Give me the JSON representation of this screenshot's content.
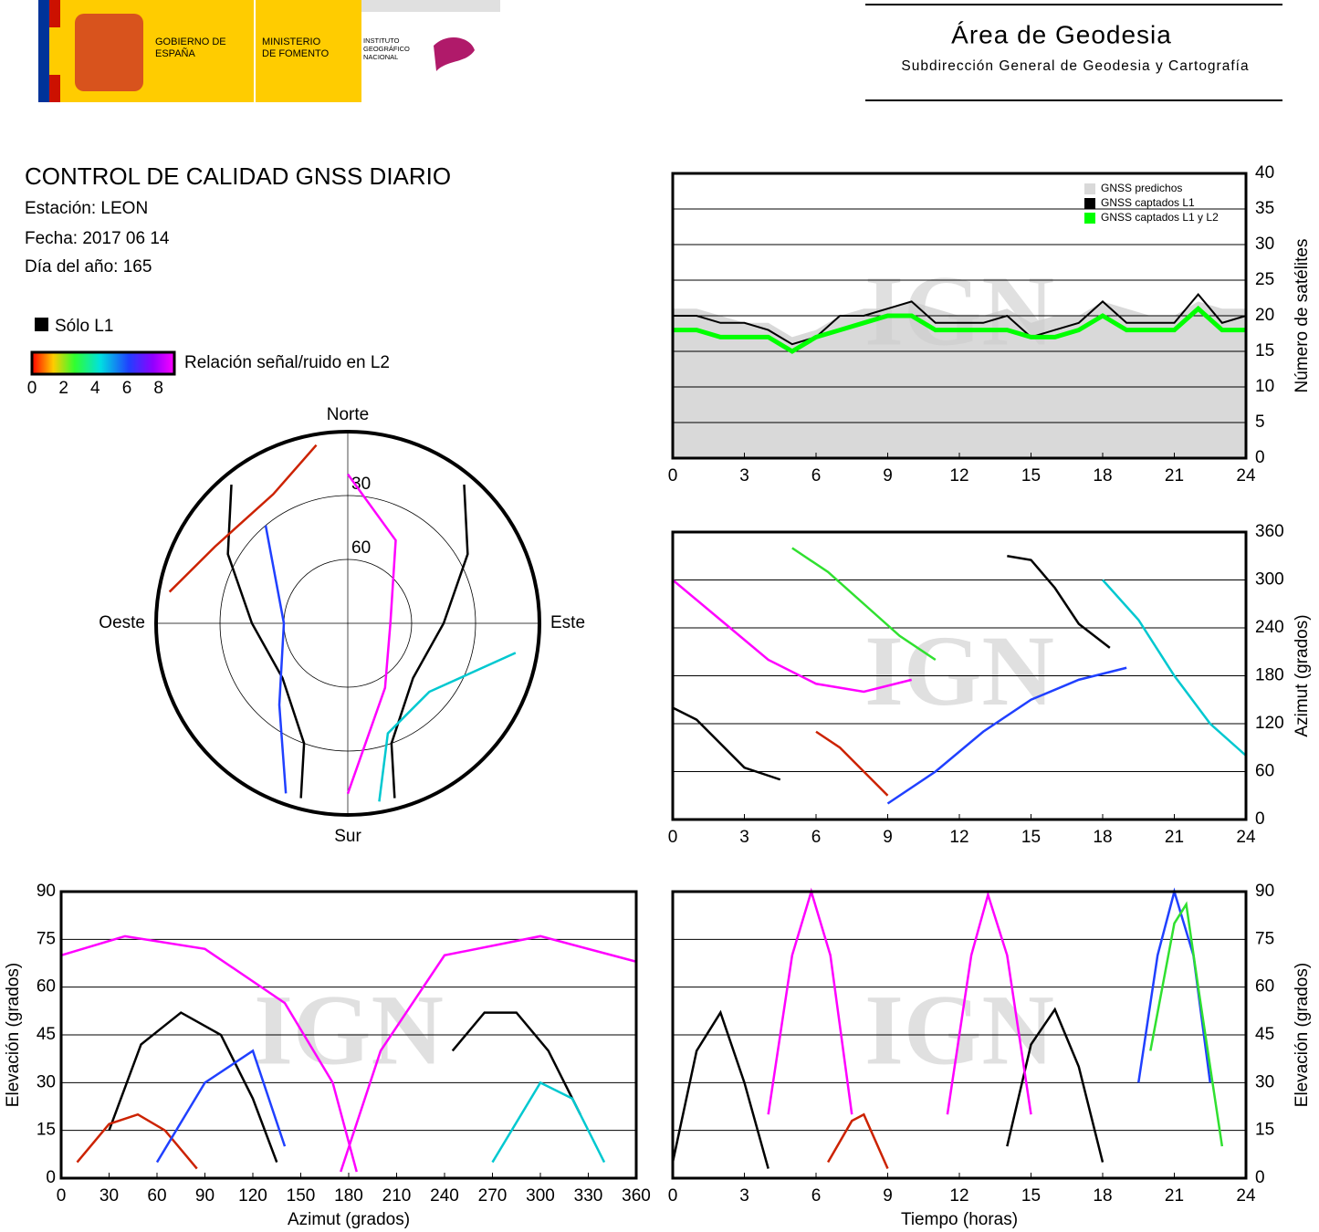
{
  "header": {
    "logos": [
      "GOBIERNO DE ESPAÑA",
      "MINISTERIO DE FOMENTO",
      "INSTITUTO GEOGRÁFICO NACIONAL"
    ],
    "area": "Área de Geodesia",
    "subarea": "Subdirección General de Geodesia y Cartografía"
  },
  "info": {
    "title": "CONTROL DE CALIDAD GNSS DIARIO",
    "station": "Estación: LEON",
    "date": "Fecha: 2017 06 14",
    "doy": "Día del año: 165"
  },
  "legend": {
    "l1_only": "Sólo L1",
    "snr_label": "Relación señal/ruido en L2",
    "snr_lim": [
      0,
      9
    ],
    "snr_ticks": [
      0,
      2,
      4,
      6,
      8
    ]
  },
  "watermark": "IGN",
  "chart_data": [
    {
      "type": "polar",
      "north": "Norte",
      "south": "Sur",
      "east": "Este",
      "west": "Oeste",
      "rlim": [
        90,
        0
      ],
      "rticks": [
        30,
        60
      ],
      "series": [
        {
          "color": "#000000",
          "azimuth": [
            320,
            300,
            270,
            230,
            200,
            195
          ],
          "elevation": [
            5,
            25,
            45,
            50,
            30,
            5
          ]
        },
        {
          "color": "#000000",
          "azimuth": [
            40,
            60,
            90,
            130,
            160,
            165
          ],
          "elevation": [
            5,
            25,
            45,
            50,
            30,
            5
          ]
        },
        {
          "color": "#ff00ff",
          "azimuth": [
            0,
            30,
            90,
            150,
            180
          ],
          "elevation": [
            20,
            45,
            70,
            55,
            10
          ]
        },
        {
          "color": "#cc2200",
          "azimuth": [
            280,
            300,
            330,
            350
          ],
          "elevation": [
            5,
            18,
            20,
            5
          ]
        },
        {
          "color": "#2040ff",
          "azimuth": [
            200,
            220,
            270,
            320
          ],
          "elevation": [
            5,
            40,
            60,
            30
          ]
        },
        {
          "color": "#00c8d0",
          "azimuth": [
            100,
            130,
            160,
            170
          ],
          "elevation": [
            10,
            40,
            35,
            5
          ]
        }
      ]
    },
    {
      "type": "area-step",
      "ylabel": "Número de satélites",
      "x": [
        0,
        1,
        2,
        3,
        4,
        5,
        6,
        7,
        8,
        9,
        10,
        11,
        12,
        13,
        14,
        15,
        16,
        17,
        18,
        19,
        20,
        21,
        22,
        23,
        24
      ],
      "xlim": [
        0,
        24
      ],
      "xticks": [
        0,
        3,
        6,
        9,
        12,
        15,
        18,
        21,
        24
      ],
      "ylim": [
        0,
        40
      ],
      "yticks": [
        0,
        5,
        10,
        15,
        20,
        25,
        30,
        35,
        40
      ],
      "grid": true,
      "legend": "upper right",
      "series": [
        {
          "name": "GNSS predichos",
          "color": "#d9d9d9",
          "values": [
            21,
            21,
            20,
            19,
            19,
            17,
            18,
            20,
            21,
            21,
            22,
            21,
            20,
            20,
            21,
            19,
            20,
            20,
            22,
            21,
            20,
            20,
            22,
            21,
            21
          ]
        },
        {
          "name": "GNSS captados L1",
          "color": "#000000",
          "values": [
            20,
            20,
            19,
            19,
            18,
            16,
            17,
            20,
            20,
            21,
            22,
            19,
            19,
            19,
            20,
            17,
            18,
            19,
            22,
            19,
            19,
            19,
            23,
            19,
            20
          ]
        },
        {
          "name": "GNSS captados L1 y L2",
          "color": "#00ff00",
          "values": [
            18,
            18,
            17,
            17,
            17,
            15,
            17,
            18,
            19,
            20,
            20,
            18,
            18,
            18,
            18,
            17,
            17,
            18,
            20,
            18,
            18,
            18,
            21,
            18,
            18
          ]
        }
      ]
    },
    {
      "type": "line",
      "ylabel": "Azimut (grados)",
      "xlim": [
        0,
        24
      ],
      "xticks": [
        0,
        3,
        6,
        9,
        12,
        15,
        18,
        21,
        24
      ],
      "ylim": [
        0,
        360
      ],
      "yticks": [
        0,
        60,
        120,
        180,
        240,
        300,
        360
      ],
      "grid": true,
      "series": [
        {
          "color": "#000000",
          "x": [
            0,
            1,
            2,
            3,
            4.5
          ],
          "values": [
            140,
            125,
            95,
            65,
            50
          ]
        },
        {
          "color": "#000000",
          "x": [
            14,
            15,
            16,
            17,
            18.3
          ],
          "values": [
            330,
            325,
            290,
            245,
            215
          ]
        },
        {
          "color": "#ff00ff",
          "x": [
            0,
            2,
            4,
            6,
            8,
            10
          ],
          "values": [
            300,
            250,
            200,
            170,
            160,
            175
          ]
        },
        {
          "color": "#2040ff",
          "x": [
            9,
            11,
            13,
            15,
            17,
            19
          ],
          "values": [
            20,
            60,
            110,
            150,
            175,
            190
          ]
        },
        {
          "color": "#00c8d0",
          "x": [
            18,
            19.5,
            21,
            22.5,
            24
          ],
          "values": [
            300,
            250,
            180,
            120,
            80
          ]
        },
        {
          "color": "#30e030",
          "x": [
            5,
            6.5,
            8,
            9.5,
            11
          ],
          "values": [
            340,
            310,
            270,
            230,
            200
          ]
        },
        {
          "color": "#cc2200",
          "x": [
            6,
            7,
            8,
            9
          ],
          "values": [
            110,
            90,
            60,
            30
          ]
        }
      ]
    },
    {
      "type": "line",
      "xlabel": "Azimut (grados)",
      "ylabel": "Elevación (grados)",
      "xlim": [
        0,
        360
      ],
      "xticks": [
        0,
        30,
        60,
        90,
        120,
        150,
        180,
        210,
        240,
        270,
        300,
        330,
        360
      ],
      "ylim": [
        0,
        90
      ],
      "yticks": [
        0,
        15,
        30,
        45,
        60,
        75,
        90
      ],
      "grid": true,
      "series": [
        {
          "color": "#000000",
          "x": [
            30,
            50,
            75,
            100,
            120,
            135
          ],
          "values": [
            15,
            42,
            52,
            45,
            25,
            5
          ]
        },
        {
          "color": "#000000",
          "x": [
            245,
            265,
            285,
            305,
            325
          ],
          "values": [
            40,
            52,
            52,
            40,
            20
          ]
        },
        {
          "color": "#cc2200",
          "x": [
            10,
            30,
            48,
            65,
            85
          ],
          "values": [
            5,
            17,
            20,
            15,
            3
          ]
        },
        {
          "color": "#ff00ff",
          "x": [
            0,
            40,
            90,
            140,
            170,
            185
          ],
          "values": [
            70,
            76,
            72,
            55,
            30,
            2
          ]
        },
        {
          "color": "#ff00ff",
          "x": [
            175,
            200,
            240,
            300,
            360
          ],
          "values": [
            2,
            40,
            70,
            76,
            68
          ]
        },
        {
          "color": "#2040ff",
          "x": [
            60,
            90,
            120,
            140
          ],
          "values": [
            5,
            30,
            40,
            10
          ]
        },
        {
          "color": "#00c8d0",
          "x": [
            270,
            300,
            320,
            340
          ],
          "values": [
            5,
            30,
            25,
            5
          ]
        }
      ]
    },
    {
      "type": "line",
      "xlabel": "Tiempo (horas)",
      "ylabel": "Elevación (grados)",
      "xlim": [
        0,
        24
      ],
      "xticks": [
        0,
        3,
        6,
        9,
        12,
        15,
        18,
        21,
        24
      ],
      "ylim": [
        0,
        90
      ],
      "yticks": [
        0,
        15,
        30,
        45,
        60,
        75,
        90
      ],
      "grid": true,
      "series": [
        {
          "color": "#000000",
          "x": [
            0,
            1,
            2,
            3,
            4
          ],
          "values": [
            5,
            40,
            52,
            30,
            3
          ]
        },
        {
          "color": "#000000",
          "x": [
            14,
            15,
            16,
            17,
            18
          ],
          "values": [
            10,
            42,
            53,
            35,
            5
          ]
        },
        {
          "color": "#cc2200",
          "x": [
            6.5,
            7.5,
            8,
            9
          ],
          "values": [
            5,
            18,
            20,
            3
          ]
        },
        {
          "color": "#ff00ff",
          "x": [
            4,
            5,
            5.8,
            6.6,
            7.5
          ],
          "values": [
            20,
            70,
            90,
            70,
            20
          ]
        },
        {
          "color": "#ff00ff",
          "x": [
            11.5,
            12.5,
            13.2,
            14,
            15
          ],
          "values": [
            20,
            70,
            89,
            70,
            20
          ]
        },
        {
          "color": "#2040ff",
          "x": [
            19.5,
            20.3,
            21,
            21.8,
            22.5
          ],
          "values": [
            30,
            70,
            90,
            70,
            30
          ]
        },
        {
          "color": "#30e030",
          "x": [
            20,
            21,
            21.5,
            22,
            23
          ],
          "values": [
            40,
            80,
            86,
            60,
            10
          ]
        }
      ]
    }
  ]
}
